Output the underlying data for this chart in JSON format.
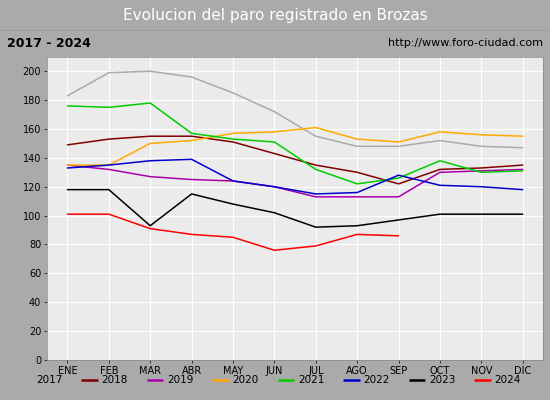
{
  "title": "Evolucion del paro registrado en Brozas",
  "subtitle_left": "2017 - 2024",
  "subtitle_right": "http://www.foro-ciudad.com",
  "months": [
    "ENE",
    "FEB",
    "MAR",
    "ABR",
    "MAY",
    "JUN",
    "JUL",
    "AGO",
    "SEP",
    "OCT",
    "NOV",
    "DIC"
  ],
  "series": {
    "2017": {
      "color": "#aaaaaa",
      "data": [
        183,
        199,
        200,
        196,
        185,
        172,
        155,
        148,
        148,
        152,
        148,
        147
      ]
    },
    "2018": {
      "color": "#800000",
      "data": [
        149,
        153,
        155,
        155,
        151,
        143,
        135,
        130,
        122,
        132,
        133,
        135
      ]
    },
    "2019": {
      "color": "#aa00aa",
      "data": [
        135,
        132,
        127,
        125,
        124,
        120,
        113,
        113,
        113,
        130,
        131,
        132
      ]
    },
    "2020": {
      "color": "#ffaa00",
      "data": [
        135,
        135,
        150,
        152,
        157,
        158,
        161,
        153,
        151,
        158,
        156,
        155
      ]
    },
    "2021": {
      "color": "#00cc00",
      "data": [
        176,
        175,
        178,
        157,
        153,
        151,
        132,
        122,
        126,
        138,
        130,
        131
      ]
    },
    "2022": {
      "color": "#0000cc",
      "data": [
        133,
        135,
        138,
        139,
        124,
        120,
        115,
        116,
        128,
        121,
        120,
        118
      ]
    },
    "2023": {
      "color": "#000000",
      "data": [
        118,
        118,
        93,
        115,
        108,
        102,
        92,
        93,
        97,
        101,
        101,
        101
      ]
    },
    "2024": {
      "color": "#ff0000",
      "data": [
        101,
        101,
        91,
        87,
        85,
        76,
        79,
        87,
        86,
        null,
        null,
        null
      ]
    }
  },
  "ylim": [
    0,
    210
  ],
  "yticks": [
    0,
    20,
    40,
    60,
    80,
    100,
    120,
    140,
    160,
    180,
    200
  ],
  "bg_title": "#4472c4",
  "bg_chart": "#ebebeb",
  "bg_legend": "#e0e0e0",
  "bg_subtitle": "#d8d8d8",
  "grid_color": "#ffffff",
  "title_color": "#ffffff",
  "title_fontsize": 11,
  "subtitle_fontsize": 8,
  "legend_fontsize": 7.5,
  "tick_fontsize": 7
}
